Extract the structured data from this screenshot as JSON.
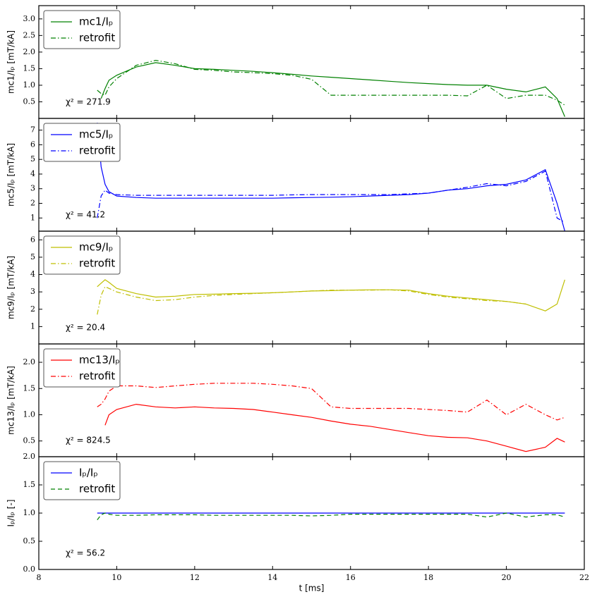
{
  "chart_data": [
    {
      "type": "line",
      "ylabel": "mc1/Iₚ [mT/kA]",
      "annotation": "χ² = 271.9",
      "x": [
        9.5,
        9.6,
        9.7,
        9.8,
        10,
        10.5,
        11,
        11.5,
        12,
        12.5,
        13,
        13.5,
        14,
        14.5,
        15,
        15.5,
        16,
        16.5,
        17,
        17.5,
        18,
        18.5,
        19,
        19.5,
        20,
        20.5,
        21,
        21.3,
        21.5
      ],
      "xlim": [
        8,
        22
      ],
      "ylim": [
        0,
        3.4
      ],
      "yticks": [
        0.5,
        {
          "value": 1,
          "label": "1.0"
        },
        1.5,
        {
          "value": 2,
          "label": "2.0"
        },
        2.5,
        {
          "value": 3,
          "label": "3.0"
        }
      ],
      "legend": "upper left",
      "series": [
        {
          "name": "mc1/Iₚ",
          "color": "#008000",
          "linestyle": "solid",
          "values": [
            null,
            0.6,
            0.9,
            1.15,
            1.3,
            1.55,
            1.68,
            1.6,
            1.5,
            1.48,
            1.45,
            1.42,
            1.38,
            1.33,
            1.28,
            1.24,
            1.2,
            1.16,
            1.12,
            1.08,
            1.05,
            1.02,
            1.0,
            1.0,
            0.88,
            0.8,
            0.95,
            0.6,
            0.05
          ]
        },
        {
          "name": "retrofit",
          "color": "#008000",
          "linestyle": "dashdot",
          "values": [
            0.85,
            0.75,
            0.7,
            0.95,
            1.2,
            1.6,
            1.75,
            1.65,
            1.48,
            1.45,
            1.4,
            1.38,
            1.35,
            1.3,
            1.18,
            0.7,
            0.7,
            0.7,
            0.7,
            0.7,
            0.7,
            0.7,
            0.68,
            1.0,
            0.6,
            0.7,
            0.7,
            0.55,
            0.4
          ]
        }
      ]
    },
    {
      "type": "line",
      "ylabel": "mc5/Iₚ [mT/kA]",
      "annotation": "χ² = 41.2",
      "x": [
        9.5,
        9.6,
        9.7,
        9.8,
        10,
        10.5,
        11,
        11.5,
        12,
        12.5,
        13,
        13.5,
        14,
        14.5,
        15,
        15.5,
        16,
        16.5,
        17,
        17.5,
        18,
        18.5,
        19,
        19.5,
        20,
        20.5,
        21,
        21.3,
        21.5
      ],
      "xlim": [
        8,
        22
      ],
      "ylim": [
        0.1,
        7.8
      ],
      "yticks": [
        1,
        2,
        3,
        4,
        5,
        6,
        7
      ],
      "legend": "upper left",
      "series": [
        {
          "name": "mc5/Iₚ",
          "color": "#0000ff",
          "linestyle": "solid",
          "values": [
            7.5,
            4.5,
            3.3,
            2.8,
            2.5,
            2.4,
            2.35,
            2.35,
            2.35,
            2.35,
            2.35,
            2.35,
            2.35,
            2.38,
            2.4,
            2.42,
            2.45,
            2.5,
            2.55,
            2.6,
            2.7,
            2.9,
            3.0,
            3.2,
            3.3,
            3.6,
            4.3,
            2.0,
            0.1
          ]
        },
        {
          "name": "retrofit",
          "color": "#0000ff",
          "linestyle": "dashdot",
          "values": [
            1.0,
            2.5,
            2.9,
            2.7,
            2.6,
            2.55,
            2.55,
            2.55,
            2.55,
            2.55,
            2.55,
            2.55,
            2.55,
            2.58,
            2.6,
            2.6,
            2.6,
            2.6,
            2.6,
            2.65,
            2.7,
            2.9,
            3.1,
            3.35,
            3.2,
            3.5,
            4.2,
            1.0,
            0.7
          ]
        }
      ]
    },
    {
      "type": "line",
      "ylabel": "mc9/Iₚ [mT/kA]",
      "annotation": "χ² = 20.4",
      "x": [
        9.5,
        9.6,
        9.7,
        9.8,
        10,
        10.5,
        11,
        11.5,
        12,
        12.5,
        13,
        13.5,
        14,
        14.5,
        15,
        15.5,
        16,
        16.5,
        17,
        17.5,
        18,
        18.5,
        19,
        19.5,
        20,
        20.5,
        21,
        21.3,
        21.5
      ],
      "xlim": [
        8,
        22
      ],
      "ylim": [
        0,
        6.5
      ],
      "yticks": [
        1,
        2,
        3,
        4,
        5,
        6
      ],
      "legend": "upper left",
      "series": [
        {
          "name": "mc9/Iₚ",
          "color": "#bfbf00",
          "linestyle": "solid",
          "values": [
            3.3,
            3.5,
            3.7,
            3.55,
            3.2,
            2.9,
            2.7,
            2.75,
            2.85,
            2.87,
            2.9,
            2.92,
            2.95,
            3.0,
            3.05,
            3.07,
            3.1,
            3.12,
            3.12,
            3.1,
            2.9,
            2.75,
            2.65,
            2.55,
            2.45,
            2.3,
            1.9,
            2.3,
            3.7
          ]
        },
        {
          "name": "retrofit",
          "color": "#bfbf00",
          "linestyle": "dashdot",
          "values": [
            1.7,
            2.8,
            3.3,
            3.2,
            3.0,
            2.7,
            2.5,
            2.55,
            2.7,
            2.8,
            2.85,
            2.9,
            2.95,
            3.0,
            3.05,
            3.1,
            3.1,
            3.1,
            3.12,
            3.05,
            2.85,
            2.7,
            2.6,
            2.5,
            2.45,
            2.3,
            null,
            null,
            null
          ]
        }
      ]
    },
    {
      "type": "line",
      "ylabel": "mc13/Iₚ [mT/kA]",
      "annotation": "χ² = 824.5",
      "x": [
        9.5,
        9.6,
        9.7,
        9.8,
        10,
        10.5,
        11,
        11.5,
        12,
        12.5,
        13,
        13.5,
        14,
        14.5,
        15,
        15.5,
        16,
        16.5,
        17,
        17.5,
        18,
        18.5,
        19,
        19.5,
        20,
        20.5,
        21,
        21.3,
        21.5
      ],
      "xlim": [
        8,
        22
      ],
      "ylim": [
        0.2,
        2.35
      ],
      "yticks": [
        0.5,
        {
          "value": 1,
          "label": "1.0"
        },
        1.5,
        {
          "value": 2,
          "label": "2.0"
        }
      ],
      "legend": "upper left",
      "series": [
        {
          "name": "mc13/Iₚ",
          "color": "#ff0000",
          "linestyle": "solid",
          "values": [
            null,
            null,
            0.8,
            1.0,
            1.1,
            1.2,
            1.15,
            1.13,
            1.15,
            1.13,
            1.12,
            1.1,
            1.05,
            1.0,
            0.95,
            0.88,
            0.82,
            0.78,
            0.72,
            0.66,
            0.6,
            0.57,
            0.56,
            0.5,
            0.4,
            0.3,
            0.38,
            0.55,
            0.48
          ]
        },
        {
          "name": "retrofit",
          "color": "#ff0000",
          "linestyle": "dashdot",
          "values": [
            1.15,
            1.2,
            1.3,
            1.45,
            1.55,
            1.55,
            1.52,
            1.55,
            1.58,
            1.6,
            1.6,
            1.6,
            1.58,
            1.55,
            1.5,
            1.15,
            1.12,
            1.12,
            1.12,
            1.12,
            1.1,
            1.08,
            1.05,
            1.28,
            1.0,
            1.2,
            1.0,
            0.9,
            0.95
          ]
        }
      ]
    },
    {
      "type": "line",
      "ylabel": "Iₚ/Iₚ [-]",
      "xlabel": "t [ms]",
      "annotation": "χ² = 56.2",
      "x": [
        9.5,
        9.6,
        9.7,
        9.8,
        10,
        10.5,
        11,
        11.5,
        12,
        12.5,
        13,
        13.5,
        14,
        14.5,
        15,
        15.5,
        16,
        16.5,
        17,
        17.5,
        18,
        18.5,
        19,
        19.5,
        20,
        20.5,
        21,
        21.3,
        21.5
      ],
      "xlim": [
        8,
        22
      ],
      "ylim": [
        0,
        2
      ],
      "xticks": [
        8,
        10,
        12,
        14,
        16,
        18,
        20,
        22
      ],
      "yticks": [
        {
          "value": 0,
          "label": "0.0"
        },
        0.5,
        {
          "value": 1,
          "label": "1.0"
        },
        1.5,
        {
          "value": 2,
          "label": "2.0"
        }
      ],
      "legend": "upper left",
      "series": [
        {
          "name": "Iₚ/Iₚ",
          "color": "#0000ff",
          "linestyle": "solid",
          "values": [
            1,
            1,
            1,
            1,
            1,
            1,
            1,
            1,
            1,
            1,
            1,
            1,
            1,
            1,
            1,
            1,
            1,
            1,
            1,
            1,
            1,
            1,
            1,
            1,
            1,
            1,
            1,
            1,
            1
          ]
        },
        {
          "name": "retrofit",
          "color": "#008000",
          "linestyle": "dashed",
          "values": [
            0.88,
            0.97,
            1.0,
            0.98,
            0.96,
            0.96,
            0.97,
            0.97,
            0.97,
            0.96,
            0.96,
            0.96,
            0.96,
            0.96,
            0.95,
            0.96,
            0.98,
            0.98,
            0.98,
            0.98,
            0.98,
            0.98,
            0.98,
            0.93,
            1.0,
            0.93,
            0.97,
            0.97,
            0.93
          ]
        }
      ]
    }
  ]
}
